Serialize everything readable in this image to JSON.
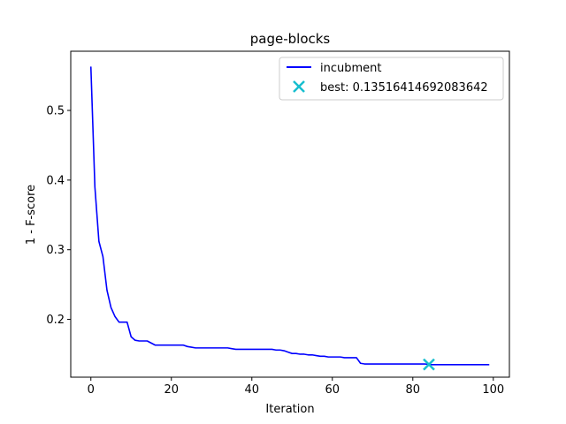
{
  "chart_data": {
    "type": "line",
    "title": "page-blocks",
    "xlabel": "Iteration",
    "ylabel": "1 - F-score",
    "xlim": [
      -5,
      104
    ],
    "ylim": [
      0.117,
      0.585
    ],
    "xticks": [
      0,
      20,
      40,
      60,
      80,
      100
    ],
    "yticks": [
      0.2,
      0.3,
      0.4,
      0.5
    ],
    "ytick_labels": [
      "0.2",
      "0.3",
      "0.4",
      "0.5"
    ],
    "grid": false,
    "legend": {
      "placement": "top-right"
    },
    "series": [
      {
        "name": "incubment",
        "color": "#0000ff",
        "style": "line",
        "x": [
          0,
          1,
          2,
          3,
          4,
          5,
          6,
          7,
          8,
          9,
          10,
          11,
          12,
          13,
          14,
          15,
          16,
          17,
          18,
          19,
          20,
          21,
          22,
          23,
          24,
          25,
          26,
          27,
          28,
          29,
          30,
          31,
          32,
          33,
          34,
          35,
          36,
          37,
          38,
          39,
          40,
          41,
          42,
          43,
          44,
          45,
          46,
          47,
          48,
          49,
          50,
          51,
          52,
          53,
          54,
          55,
          56,
          57,
          58,
          59,
          60,
          61,
          62,
          63,
          64,
          65,
          66,
          67,
          68,
          69,
          70,
          71,
          72,
          73,
          74,
          75,
          76,
          77,
          78,
          79,
          80,
          81,
          82,
          83,
          84,
          85,
          86,
          87,
          88,
          89,
          90,
          91,
          92,
          93,
          94,
          95,
          96,
          97,
          98,
          99
        ],
        "values": [
          0.563,
          0.39,
          0.312,
          0.29,
          0.242,
          0.217,
          0.204,
          0.196,
          0.196,
          0.196,
          0.175,
          0.17,
          0.169,
          0.169,
          0.169,
          0.166,
          0.163,
          0.163,
          0.163,
          0.163,
          0.163,
          0.163,
          0.163,
          0.163,
          0.161,
          0.16,
          0.159,
          0.159,
          0.159,
          0.159,
          0.159,
          0.159,
          0.159,
          0.159,
          0.159,
          0.158,
          0.157,
          0.157,
          0.157,
          0.157,
          0.157,
          0.157,
          0.157,
          0.157,
          0.157,
          0.157,
          0.156,
          0.156,
          0.155,
          0.153,
          0.151,
          0.151,
          0.15,
          0.15,
          0.149,
          0.149,
          0.148,
          0.147,
          0.147,
          0.146,
          0.146,
          0.146,
          0.146,
          0.145,
          0.145,
          0.145,
          0.145,
          0.137,
          0.136,
          0.136,
          0.136,
          0.136,
          0.136,
          0.136,
          0.136,
          0.136,
          0.136,
          0.136,
          0.136,
          0.136,
          0.136,
          0.136,
          0.136,
          0.136,
          0.1352,
          0.135,
          0.135,
          0.135,
          0.135,
          0.135,
          0.135,
          0.135,
          0.135,
          0.135,
          0.135,
          0.135,
          0.135,
          0.135,
          0.135,
          0.135
        ]
      },
      {
        "name": "best: 0.13516414692083642",
        "color": "#17becf",
        "style": "marker-x",
        "x": [
          84
        ],
        "values": [
          0.13516414692083642
        ]
      }
    ]
  }
}
